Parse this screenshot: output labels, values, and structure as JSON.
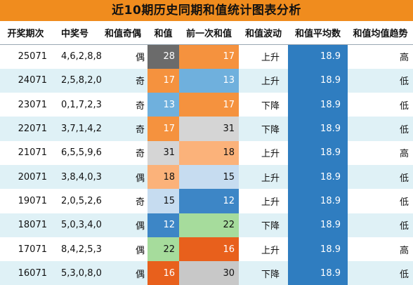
{
  "title": "近10期历史同期和值统计图表分析",
  "headers": [
    "开奖期次",
    "中奖号",
    "和值奇偶",
    "和值",
    "前一次和值",
    "和值波动",
    "和值平均数",
    "和值均值趋势"
  ],
  "rows": [
    {
      "issue": "25071",
      "numbers": "4,6,2,8,8",
      "parity": "偶",
      "sum": "28",
      "prev_sum": "17",
      "trend": "上升",
      "avg": "18.9",
      "level": "高"
    },
    {
      "issue": "24071",
      "numbers": "2,5,8,2,0",
      "parity": "奇",
      "sum": "17",
      "prev_sum": "13",
      "trend": "上升",
      "avg": "18.9",
      "level": "低"
    },
    {
      "issue": "23071",
      "numbers": "0,1,7,2,3",
      "parity": "奇",
      "sum": "13",
      "prev_sum": "17",
      "trend": "下降",
      "avg": "18.9",
      "level": "低"
    },
    {
      "issue": "22071",
      "numbers": "3,7,1,4,2",
      "parity": "奇",
      "sum": "17",
      "prev_sum": "31",
      "trend": "下降",
      "avg": "18.9",
      "level": "低"
    },
    {
      "issue": "21071",
      "numbers": "6,5,5,9,6",
      "parity": "奇",
      "sum": "31",
      "prev_sum": "18",
      "trend": "上升",
      "avg": "18.9",
      "level": "高"
    },
    {
      "issue": "20071",
      "numbers": "3,8,4,0,3",
      "parity": "偶",
      "sum": "18",
      "prev_sum": "15",
      "trend": "上升",
      "avg": "18.9",
      "level": "低"
    },
    {
      "issue": "19071",
      "numbers": "2,0,5,2,6",
      "parity": "奇",
      "sum": "15",
      "prev_sum": "12",
      "trend": "上升",
      "avg": "18.9",
      "level": "低"
    },
    {
      "issue": "18071",
      "numbers": "5,0,3,4,0",
      "parity": "偶",
      "sum": "12",
      "prev_sum": "22",
      "trend": "下降",
      "avg": "18.9",
      "level": "低"
    },
    {
      "issue": "17071",
      "numbers": "8,4,2,5,3",
      "parity": "偶",
      "sum": "22",
      "prev_sum": "16",
      "trend": "上升",
      "avg": "18.9",
      "level": "高"
    },
    {
      "issue": "16071",
      "numbers": "5,3,0,8,0",
      "parity": "偶",
      "sum": "16",
      "prev_sum": "30",
      "trend": "下降",
      "avg": "18.9",
      "level": "低"
    }
  ],
  "value_colors": {
    "12": "#3d86c6",
    "13": "#6fb0dd",
    "15": "#c6dcf0",
    "16": "#e8601c",
    "17": "#f5923e",
    "18": "#fbb27a",
    "22": "#a6dc9c",
    "28": "#6b6b6b",
    "30": "#c8c8c8",
    "31": "#d5d5d5"
  },
  "colors": {
    "title_bg": "#f08c1e",
    "alt_row": "#dff1f6",
    "avg_col": "#2f7dc0"
  }
}
